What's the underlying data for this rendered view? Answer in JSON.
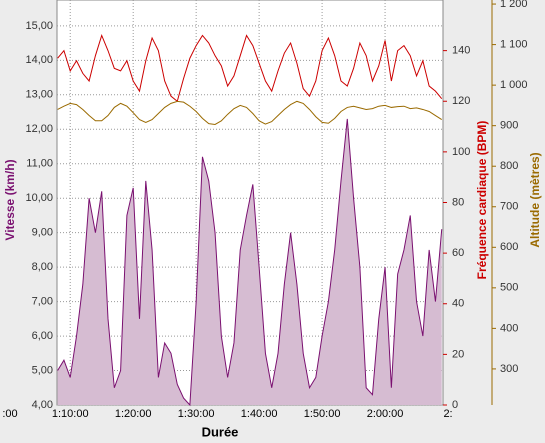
{
  "chart_data": {
    "type": "line",
    "x_label": "Durée",
    "y_label": "Vitesse (km/h)",
    "y2_label": "Fréquence cardiaque (BPM)",
    "y3_label": "Altitude (mètres)",
    "x": [
      68,
      69,
      70,
      71,
      72,
      73,
      74,
      75,
      76,
      77,
      78,
      79,
      80,
      81,
      82,
      83,
      84,
      85,
      86,
      87,
      88,
      89,
      90,
      91,
      92,
      93,
      94,
      95,
      96,
      97,
      98,
      99,
      100,
      101,
      102,
      103,
      104,
      105,
      106,
      107,
      108,
      109,
      110,
      111,
      112,
      113,
      114,
      115,
      116,
      117,
      118,
      119,
      120,
      121,
      122,
      123,
      124,
      125,
      126,
      127,
      128,
      129
    ],
    "xlim": [
      67.9,
      129.2
    ],
    "xticks": [
      {
        "value": 60,
        "label": ":00"
      },
      {
        "value": 70,
        "label": "1:10:00"
      },
      {
        "value": 80,
        "label": "1:20:00"
      },
      {
        "value": 90,
        "label": "1:30:00"
      },
      {
        "value": 100,
        "label": "1:40:00"
      },
      {
        "value": 110,
        "label": "1:50:00"
      },
      {
        "value": 120,
        "label": "2:00:00"
      },
      {
        "value": 130,
        "label": "2:"
      }
    ],
    "ylim": [
      4,
      15.75
    ],
    "yticks": [
      {
        "value": 4,
        "label": "4,00"
      },
      {
        "value": 5,
        "label": "5,00"
      },
      {
        "value": 6,
        "label": "6,00"
      },
      {
        "value": 7,
        "label": "7,00"
      },
      {
        "value": 8,
        "label": "8,00"
      },
      {
        "value": 9,
        "label": "9,00"
      },
      {
        "value": 10,
        "label": "10,00"
      },
      {
        "value": 11,
        "label": "11,00"
      },
      {
        "value": 12,
        "label": "12,00"
      },
      {
        "value": 13,
        "label": "13,00"
      },
      {
        "value": 14,
        "label": "14,00"
      },
      {
        "value": 15,
        "label": "15,00"
      }
    ],
    "y2lim": [
      0,
      160
    ],
    "y2ticks": [
      0,
      20,
      40,
      60,
      80,
      100,
      120,
      140
    ],
    "y3lim": [
      211,
      1210
    ],
    "y3ticks": [
      300,
      400,
      500,
      600,
      700,
      800,
      900,
      {
        "value": 1000,
        "label": "1 000"
      },
      {
        "value": 1100,
        "label": "1 100"
      },
      {
        "value": 1200,
        "label": "1 200"
      }
    ],
    "grid": true,
    "series": [
      {
        "color": "#7a1070",
        "fill": "#d6bcd2",
        "axis": "y",
        "values": [
          5.0,
          5.3,
          4.8,
          6.0,
          7.5,
          10.0,
          9.0,
          10.2,
          6.5,
          4.5,
          5.0,
          9.5,
          10.3,
          6.5,
          10.5,
          8.5,
          4.8,
          5.8,
          5.5,
          4.6,
          4.2,
          4.0,
          7.0,
          11.2,
          10.5,
          9.0,
          6.0,
          4.8,
          5.8,
          8.5,
          9.5,
          10.4,
          8.0,
          5.5,
          4.5,
          5.5,
          7.5,
          9.0,
          7.5,
          5.5,
          4.5,
          4.8,
          6.0,
          7.0,
          8.5,
          10.5,
          12.3,
          10.0,
          8.0,
          4.5,
          4.3,
          6.5,
          8.0,
          4.5,
          7.8,
          8.5,
          9.5,
          7.0,
          6.0,
          8.5,
          7.0,
          9.1
        ]
      },
      {
        "color": "#cc0000",
        "axis": "y2",
        "values": [
          137,
          140,
          132,
          136,
          131,
          128,
          138,
          146,
          140,
          133,
          132,
          136,
          128,
          124,
          136,
          145,
          140,
          128,
          122,
          120,
          129,
          137,
          142,
          146,
          143,
          138,
          134,
          126,
          130,
          138,
          146,
          142,
          135,
          128,
          124,
          132,
          139,
          143,
          135,
          125,
          122,
          128,
          140,
          145,
          138,
          128,
          126,
          133,
          143,
          138,
          128,
          134,
          144,
          128,
          140,
          142,
          138,
          130,
          136,
          126,
          124,
          121
        ]
      },
      {
        "color": "#9a6a00",
        "axis": "y3",
        "values": [
          940,
          948,
          955,
          952,
          940,
          925,
          912,
          912,
          925,
          945,
          955,
          948,
          932,
          915,
          908,
          915,
          930,
          945,
          955,
          960,
          958,
          948,
          935,
          918,
          905,
          903,
          912,
          928,
          942,
          950,
          945,
          930,
          912,
          904,
          910,
          925,
          940,
          952,
          960,
          955,
          940,
          922,
          908,
          906,
          918,
          935,
          945,
          948,
          944,
          940,
          942,
          948,
          950,
          945,
          947,
          948,
          942,
          944,
          940,
          935,
          925,
          915
        ]
      }
    ]
  }
}
